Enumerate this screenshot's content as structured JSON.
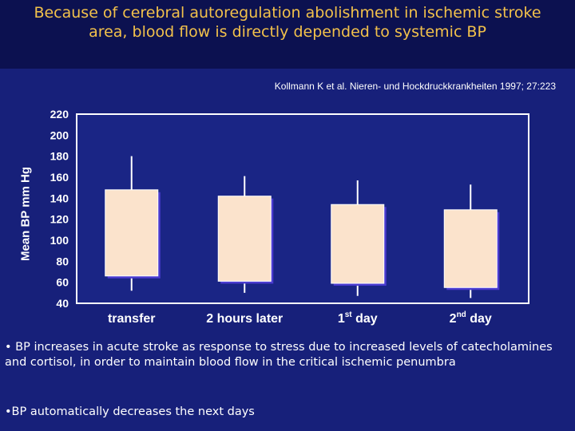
{
  "slide": {
    "title": "Because of cerebral autoregulation  abolishment  in ischemic stroke\narea, blood flow is directly depended to systemic BP",
    "citation": "Kollmann K et al. Nieren- und Hockdruckkrankheiten 1997; 27:223",
    "bullets": [
      "• BP increases in acute stroke as response to stress due to increased levels of catecholamines and cortisol, in order to maintain blood flow in the critical ischemic penumbra",
      "•BP automatically decreases the next days"
    ]
  },
  "chart_data": {
    "type": "bar",
    "subtype": "floating-range-with-whiskers",
    "ylabel": "Mean BP mm Hg",
    "ylim": [
      40,
      220
    ],
    "yticks": [
      220,
      200,
      180,
      160,
      140,
      120,
      100,
      80,
      60,
      40
    ],
    "categories": [
      {
        "label": "transfer",
        "sup": "",
        "suffix": ""
      },
      {
        "label": "2 hours later",
        "sup": "",
        "suffix": ""
      },
      {
        "label": "1",
        "sup": "st",
        "suffix": " day"
      },
      {
        "label": "2",
        "sup": "nd",
        "suffix": " day"
      }
    ],
    "series": [
      {
        "box_low": [
          66,
          61,
          59,
          55
        ],
        "box_high": [
          148,
          142,
          134,
          129
        ],
        "whisker_low": [
          52,
          50,
          47,
          45
        ],
        "whisker_high": [
          180,
          161,
          157,
          153
        ]
      }
    ],
    "colors": {
      "plot_bg": "#1a2585",
      "axis": "#ffffff",
      "box_fill": "#fbe3cc",
      "box_shadow": "#4a3bd0",
      "whisker": "#ffffff"
    },
    "grid": false
  }
}
